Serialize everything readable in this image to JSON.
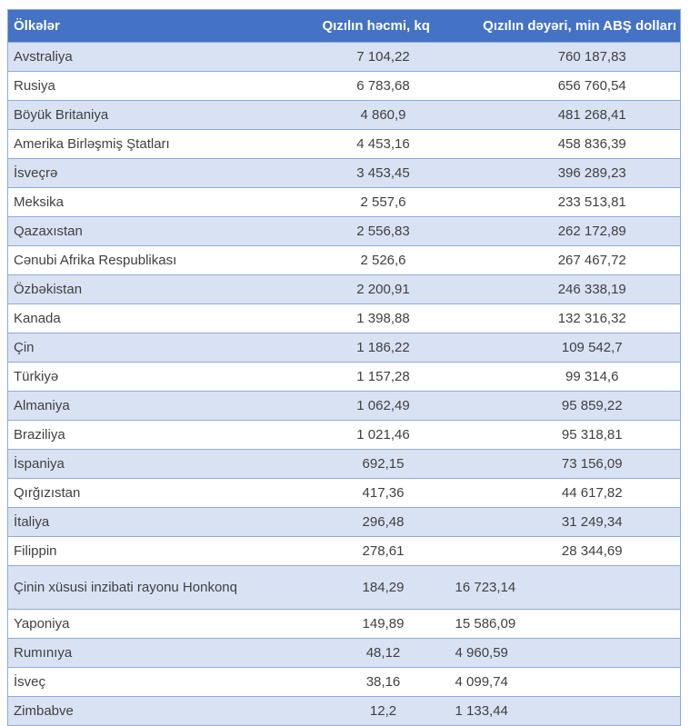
{
  "colors": {
    "header_background": "#4472C4",
    "header_text": "#FFFFFF",
    "band_row_background": "#D9E2F3",
    "plain_row_background": "#FFFFFF",
    "border": "#8EAADB",
    "body_text": "#404040"
  },
  "table": {
    "columns": [
      {
        "label": "Ölkələr"
      },
      {
        "label": "Qızılın həcmi, kq"
      },
      {
        "label": "Qızılın dəyəri, min ABŞ dolları"
      }
    ],
    "rows": [
      {
        "country": "Avstraliya",
        "volume": "7 104,22",
        "value": "760 187,83",
        "value_align": "center"
      },
      {
        "country": "Rusiya",
        "volume": "6 783,68",
        "value": "656 760,54",
        "value_align": "center"
      },
      {
        "country": "Böyük Britaniya",
        "volume": "4 860,9",
        "value": "481 268,41",
        "value_align": "center"
      },
      {
        "country": "Amerika Birləşmiş Ştatları",
        "volume": "4 453,16",
        "value": "458 836,39",
        "value_align": "center"
      },
      {
        "country": "İsveçrə",
        "volume": "3 453,45",
        "value": "396 289,23",
        "value_align": "center"
      },
      {
        "country": "Meksika",
        "volume": "2 557,6",
        "value": "233 513,81",
        "value_align": "center"
      },
      {
        "country": "Qazaxıstan",
        "volume": "2 556,83",
        "value": "262 172,89",
        "value_align": "center"
      },
      {
        "country": "Cənubi Afrika Respublikası",
        "volume": "2 526,6",
        "value": "267 467,72",
        "value_align": "center"
      },
      {
        "country": "Özbəkistan",
        "volume": "2 200,91",
        "value": "246 338,19",
        "value_align": "center"
      },
      {
        "country": "Kanada",
        "volume": "1 398,88",
        "value": "132 316,32",
        "value_align": "center"
      },
      {
        "country": "Çin",
        "volume": "1 186,22",
        "value": "109 542,7",
        "value_align": "center"
      },
      {
        "country": "Türkiyə",
        "volume": "1 157,28",
        "value": "99 314,6",
        "value_align": "center"
      },
      {
        "country": "Almaniya",
        "volume": "1 062,49",
        "value": "95 859,22",
        "value_align": "center"
      },
      {
        "country": "Braziliya",
        "volume": "1 021,46",
        "value": "95 318,81",
        "value_align": "center"
      },
      {
        "country": "İspaniya",
        "volume": "692,15",
        "value": "73 156,09",
        "value_align": "center"
      },
      {
        "country": "Qırğızıstan",
        "volume": "417,36",
        "value": "44 617,82",
        "value_align": "center"
      },
      {
        "country": "İtaliya",
        "volume": "296,48",
        "value": "31 249,34",
        "value_align": "center"
      },
      {
        "country": "Filippin",
        "volume": "278,61",
        "value": "28 344,69",
        "value_align": "center"
      },
      {
        "country": "Çinin xüsusi inzibati rayonu Honkonq",
        "volume": "184,29",
        "value": "16 723,14",
        "value_align": "left",
        "tall": true
      },
      {
        "country": "Yaponiya",
        "volume": "149,89",
        "value": "15 586,09",
        "value_align": "left"
      },
      {
        "country": "Rumınıya",
        "volume": "48,12",
        "value": "4 960,59",
        "value_align": "left"
      },
      {
        "country": "İsveç",
        "volume": "38,16",
        "value": "4 099,74",
        "value_align": "left"
      },
      {
        "country": "Zimbabve",
        "volume": "12,2",
        "value": "1 133,44",
        "value_align": "left"
      }
    ]
  },
  "chart_data": {
    "type": "table",
    "title": "",
    "columns": [
      "Ölkələr",
      "Qızılın həcmi, kq",
      "Qızılın dəyəri, min ABŞ dolları"
    ],
    "rows": [
      [
        "Avstraliya",
        "7 104,22",
        "760 187,83"
      ],
      [
        "Rusiya",
        "6 783,68",
        "656 760,54"
      ],
      [
        "Böyük Britaniya",
        "4 860,9",
        "481 268,41"
      ],
      [
        "Amerika Birləşmiş Ştatları",
        "4 453,16",
        "458 836,39"
      ],
      [
        "İsveçrə",
        "3 453,45",
        "396 289,23"
      ],
      [
        "Meksika",
        "2 557,6",
        "233 513,81"
      ],
      [
        "Qazaxıstan",
        "2 556,83",
        "262 172,89"
      ],
      [
        "Cənubi Afrika Respublikası",
        "2 526,6",
        "267 467,72"
      ],
      [
        "Özbəkistan",
        "2 200,91",
        "246 338,19"
      ],
      [
        "Kanada",
        "1 398,88",
        "132 316,32"
      ],
      [
        "Çin",
        "1 186,22",
        "109 542,7"
      ],
      [
        "Türkiyə",
        "1 157,28",
        "99 314,6"
      ],
      [
        "Almaniya",
        "1 062,49",
        "95 859,22"
      ],
      [
        "Braziliya",
        "1 021,46",
        "95 318,81"
      ],
      [
        "İspaniya",
        "692,15",
        "73 156,09"
      ],
      [
        "Qırğızıstan",
        "417,36",
        "44 617,82"
      ],
      [
        "İtaliya",
        "296,48",
        "31 249,34"
      ],
      [
        "Filippin",
        "278,61",
        "28 344,69"
      ],
      [
        "Çinin xüsusi inzibati rayonu Honkonq",
        "184,29",
        "16 723,14"
      ],
      [
        "Yaponiya",
        "149,89",
        "15 586,09"
      ],
      [
        "Rumınıya",
        "48,12",
        "4 960,59"
      ],
      [
        "İsveç",
        "38,16",
        "4 099,74"
      ],
      [
        "Zimbabve",
        "12,2",
        "1 133,44"
      ]
    ]
  }
}
